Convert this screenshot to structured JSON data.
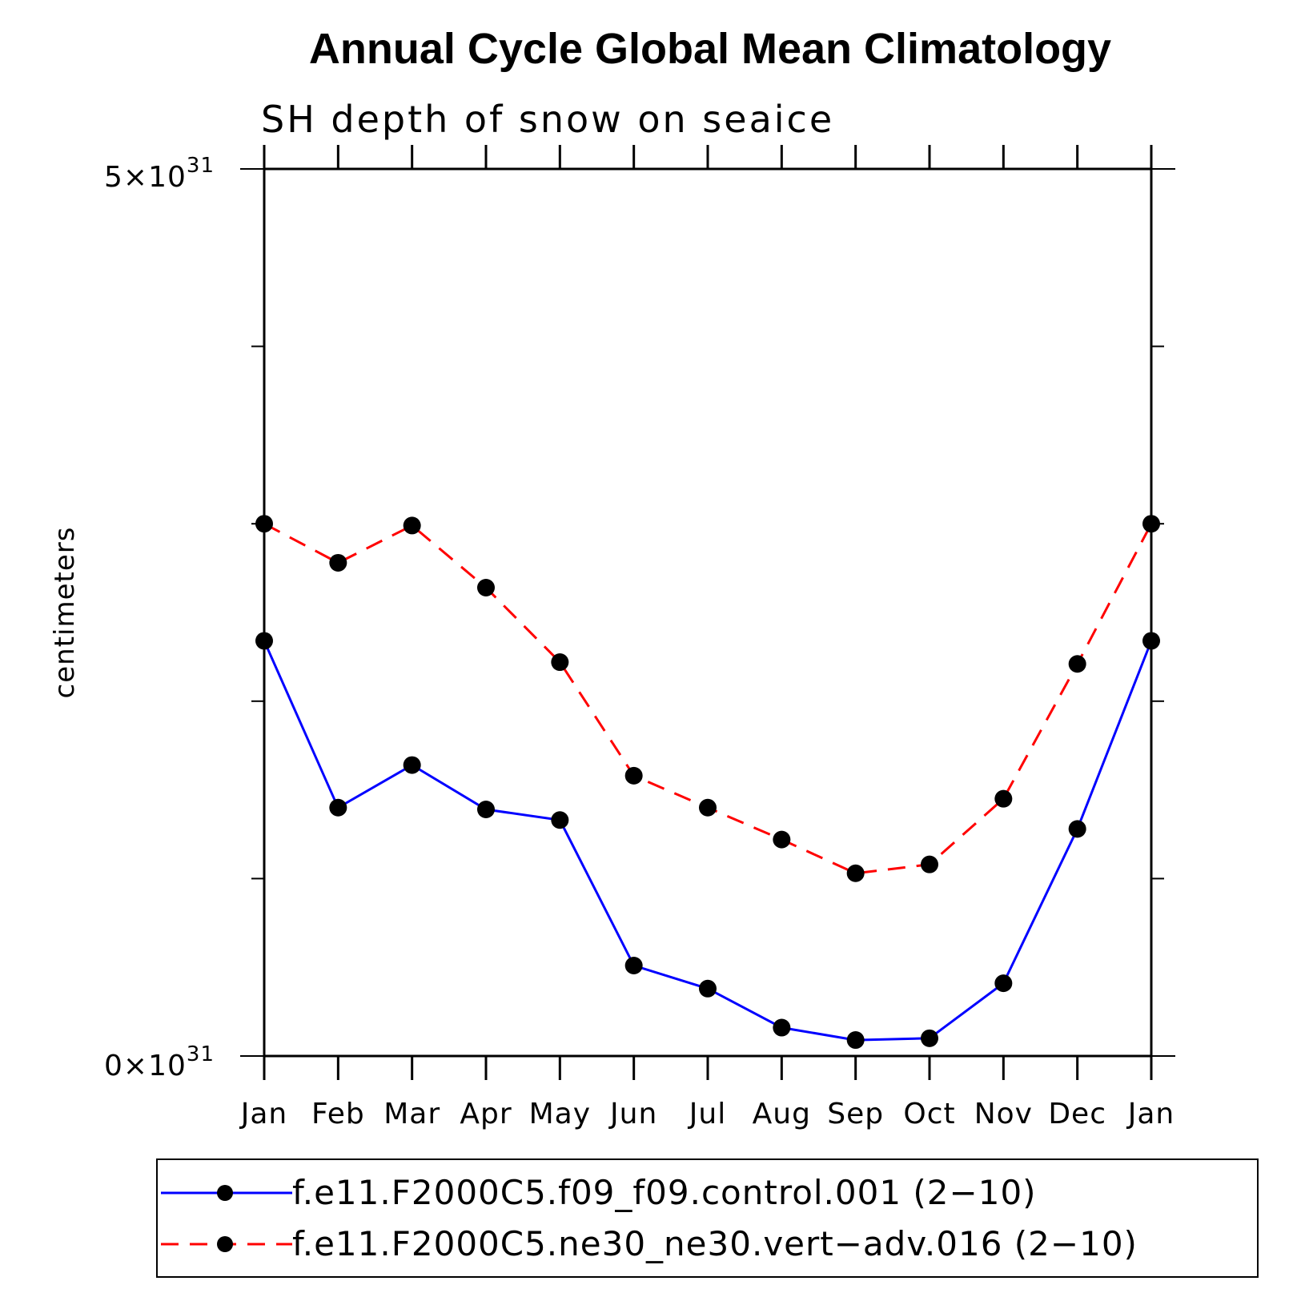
{
  "chart_data": {
    "type": "line",
    "title": "Annual Cycle Global Mean Climatology",
    "subtitle": "SH depth of snow on seaice",
    "ylabel": "centimeters",
    "xlabel": "",
    "categories": [
      "Jan",
      "Feb",
      "Mar",
      "Apr",
      "May",
      "Jun",
      "Jul",
      "Aug",
      "Sep",
      "Oct",
      "Nov",
      "Dec",
      "Jan"
    ],
    "ylim": [
      0,
      5e+31
    ],
    "ytick_values": [
      0,
      1e+31,
      2e+31,
      3e+31,
      4e+31,
      5e+31
    ],
    "ytick_labels": {
      "bottom": {
        "mantissa": "0×10",
        "exponent": "31"
      },
      "top": {
        "mantissa": "5×10",
        "exponent": "31"
      }
    },
    "grid": false,
    "legend_position": "bottom",
    "series": [
      {
        "name": "f.e11.F2000C5.f09_f09.control.001 (2−10)",
        "color": "#0000ff",
        "dash": "solid",
        "marker": "filled-circle",
        "values": [
          2.34e+31,
          1.4e+31,
          1.64e+31,
          1.39e+31,
          1.33e+31,
          5.1e+30,
          3.8e+30,
          1.6e+30,
          9e+29,
          1e+30,
          4.1e+30,
          1.28e+31,
          2.34e+31
        ]
      },
      {
        "name": "f.e11.F2000C5.ne30_ne30.vert−adv.016 (2−10)",
        "color": "#ff0000",
        "dash": "dashed",
        "marker": "filled-circle",
        "values": [
          3e+31,
          2.78e+31,
          2.99e+31,
          2.64e+31,
          2.22e+31,
          1.58e+31,
          1.4e+31,
          1.22e+31,
          1.03e+31,
          1.08e+31,
          1.45e+31,
          2.21e+31,
          3e+31
        ]
      }
    ]
  }
}
